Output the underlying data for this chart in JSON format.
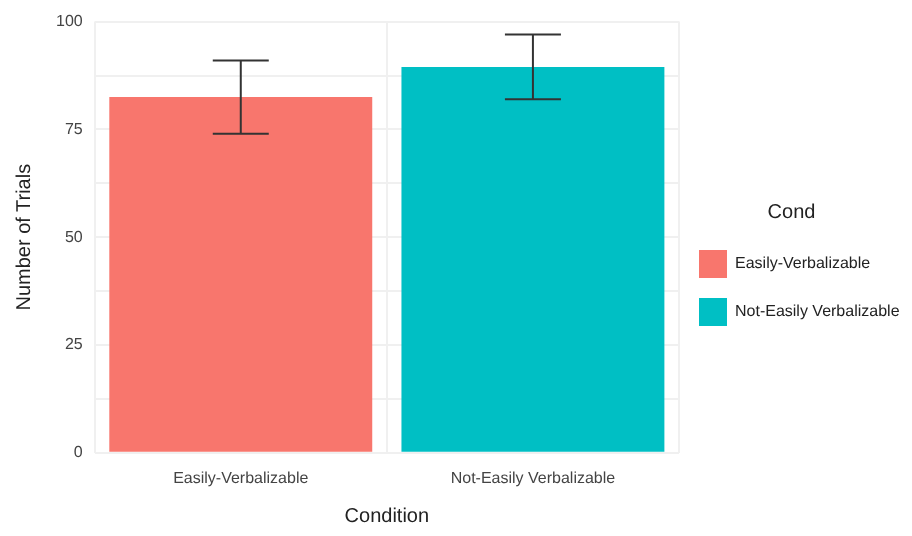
{
  "chart_data": {
    "type": "bar",
    "xlabel": "Condition",
    "ylabel": "Number of Trials",
    "legend_title": "Cond",
    "categories": [
      "Easily-Verbalizable",
      "Not-Easily Verbalizable"
    ],
    "series": [
      {
        "name": "Easily-Verbalizable",
        "color": "#f8766d",
        "values": [
          82.5,
          null
        ],
        "errors": [
          [
            74,
            91
          ],
          null
        ]
      },
      {
        "name": "Not-Easily Verbalizable",
        "color": "#00bfc4",
        "values": [
          null,
          89.5
        ],
        "errors": [
          null,
          [
            82,
            97
          ]
        ]
      }
    ],
    "ylim": [
      0,
      100
    ],
    "yticks": [
      0,
      {
        "value": 12.5,
        "label": null
      },
      25,
      {
        "value": 37.5,
        "label": null
      },
      50,
      {
        "value": 62.5,
        "label": null
      },
      75,
      {
        "value": 87.5,
        "label": null
      },
      100
    ],
    "grid": true,
    "legend": "right"
  }
}
